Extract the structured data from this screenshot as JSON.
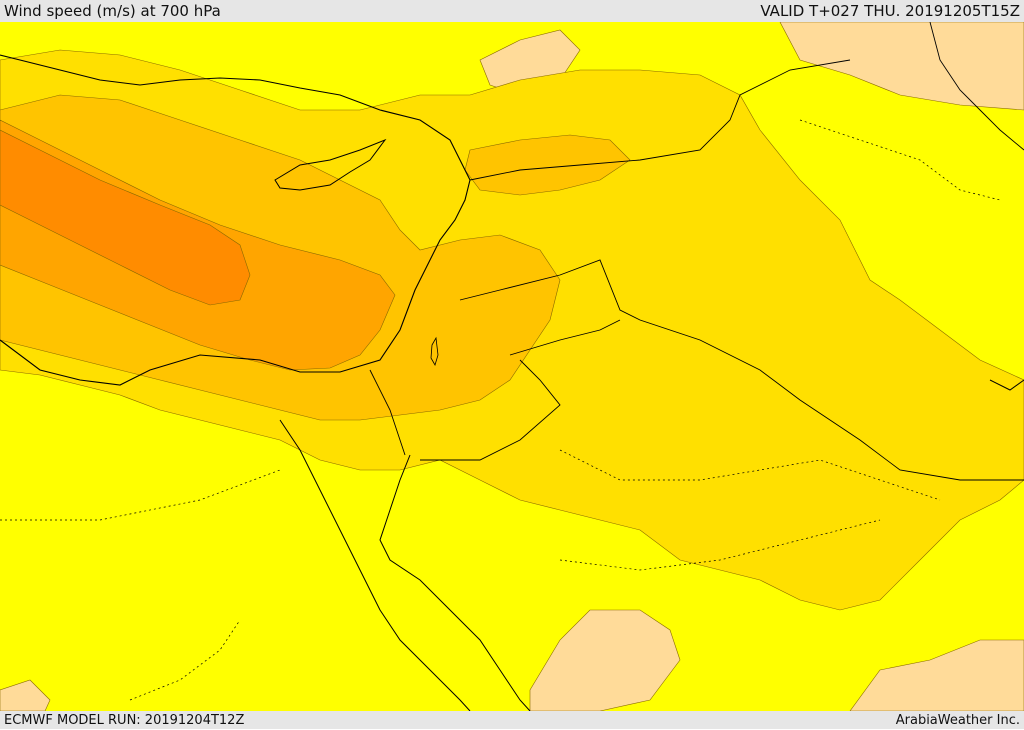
{
  "header": {
    "title": "Wind speed (m/s) at 700 hPa",
    "valid": "VALID T+027 THU. 20191205T15Z"
  },
  "footer": {
    "model_run": "ECMWF MODEL RUN: 20191204T12Z",
    "credit": "ArabiaWeather Inc."
  },
  "map": {
    "palette": {
      "band_light": "#ffdb99",
      "band_1": "#ffff00",
      "band_2": "#ffe000",
      "band_3": "#ffc400",
      "band_4": "#ffa500",
      "band_5": "#ff8c00",
      "band_6": "#ff7400",
      "contour": "#8a6a00",
      "boundary": "#000000"
    }
  }
}
